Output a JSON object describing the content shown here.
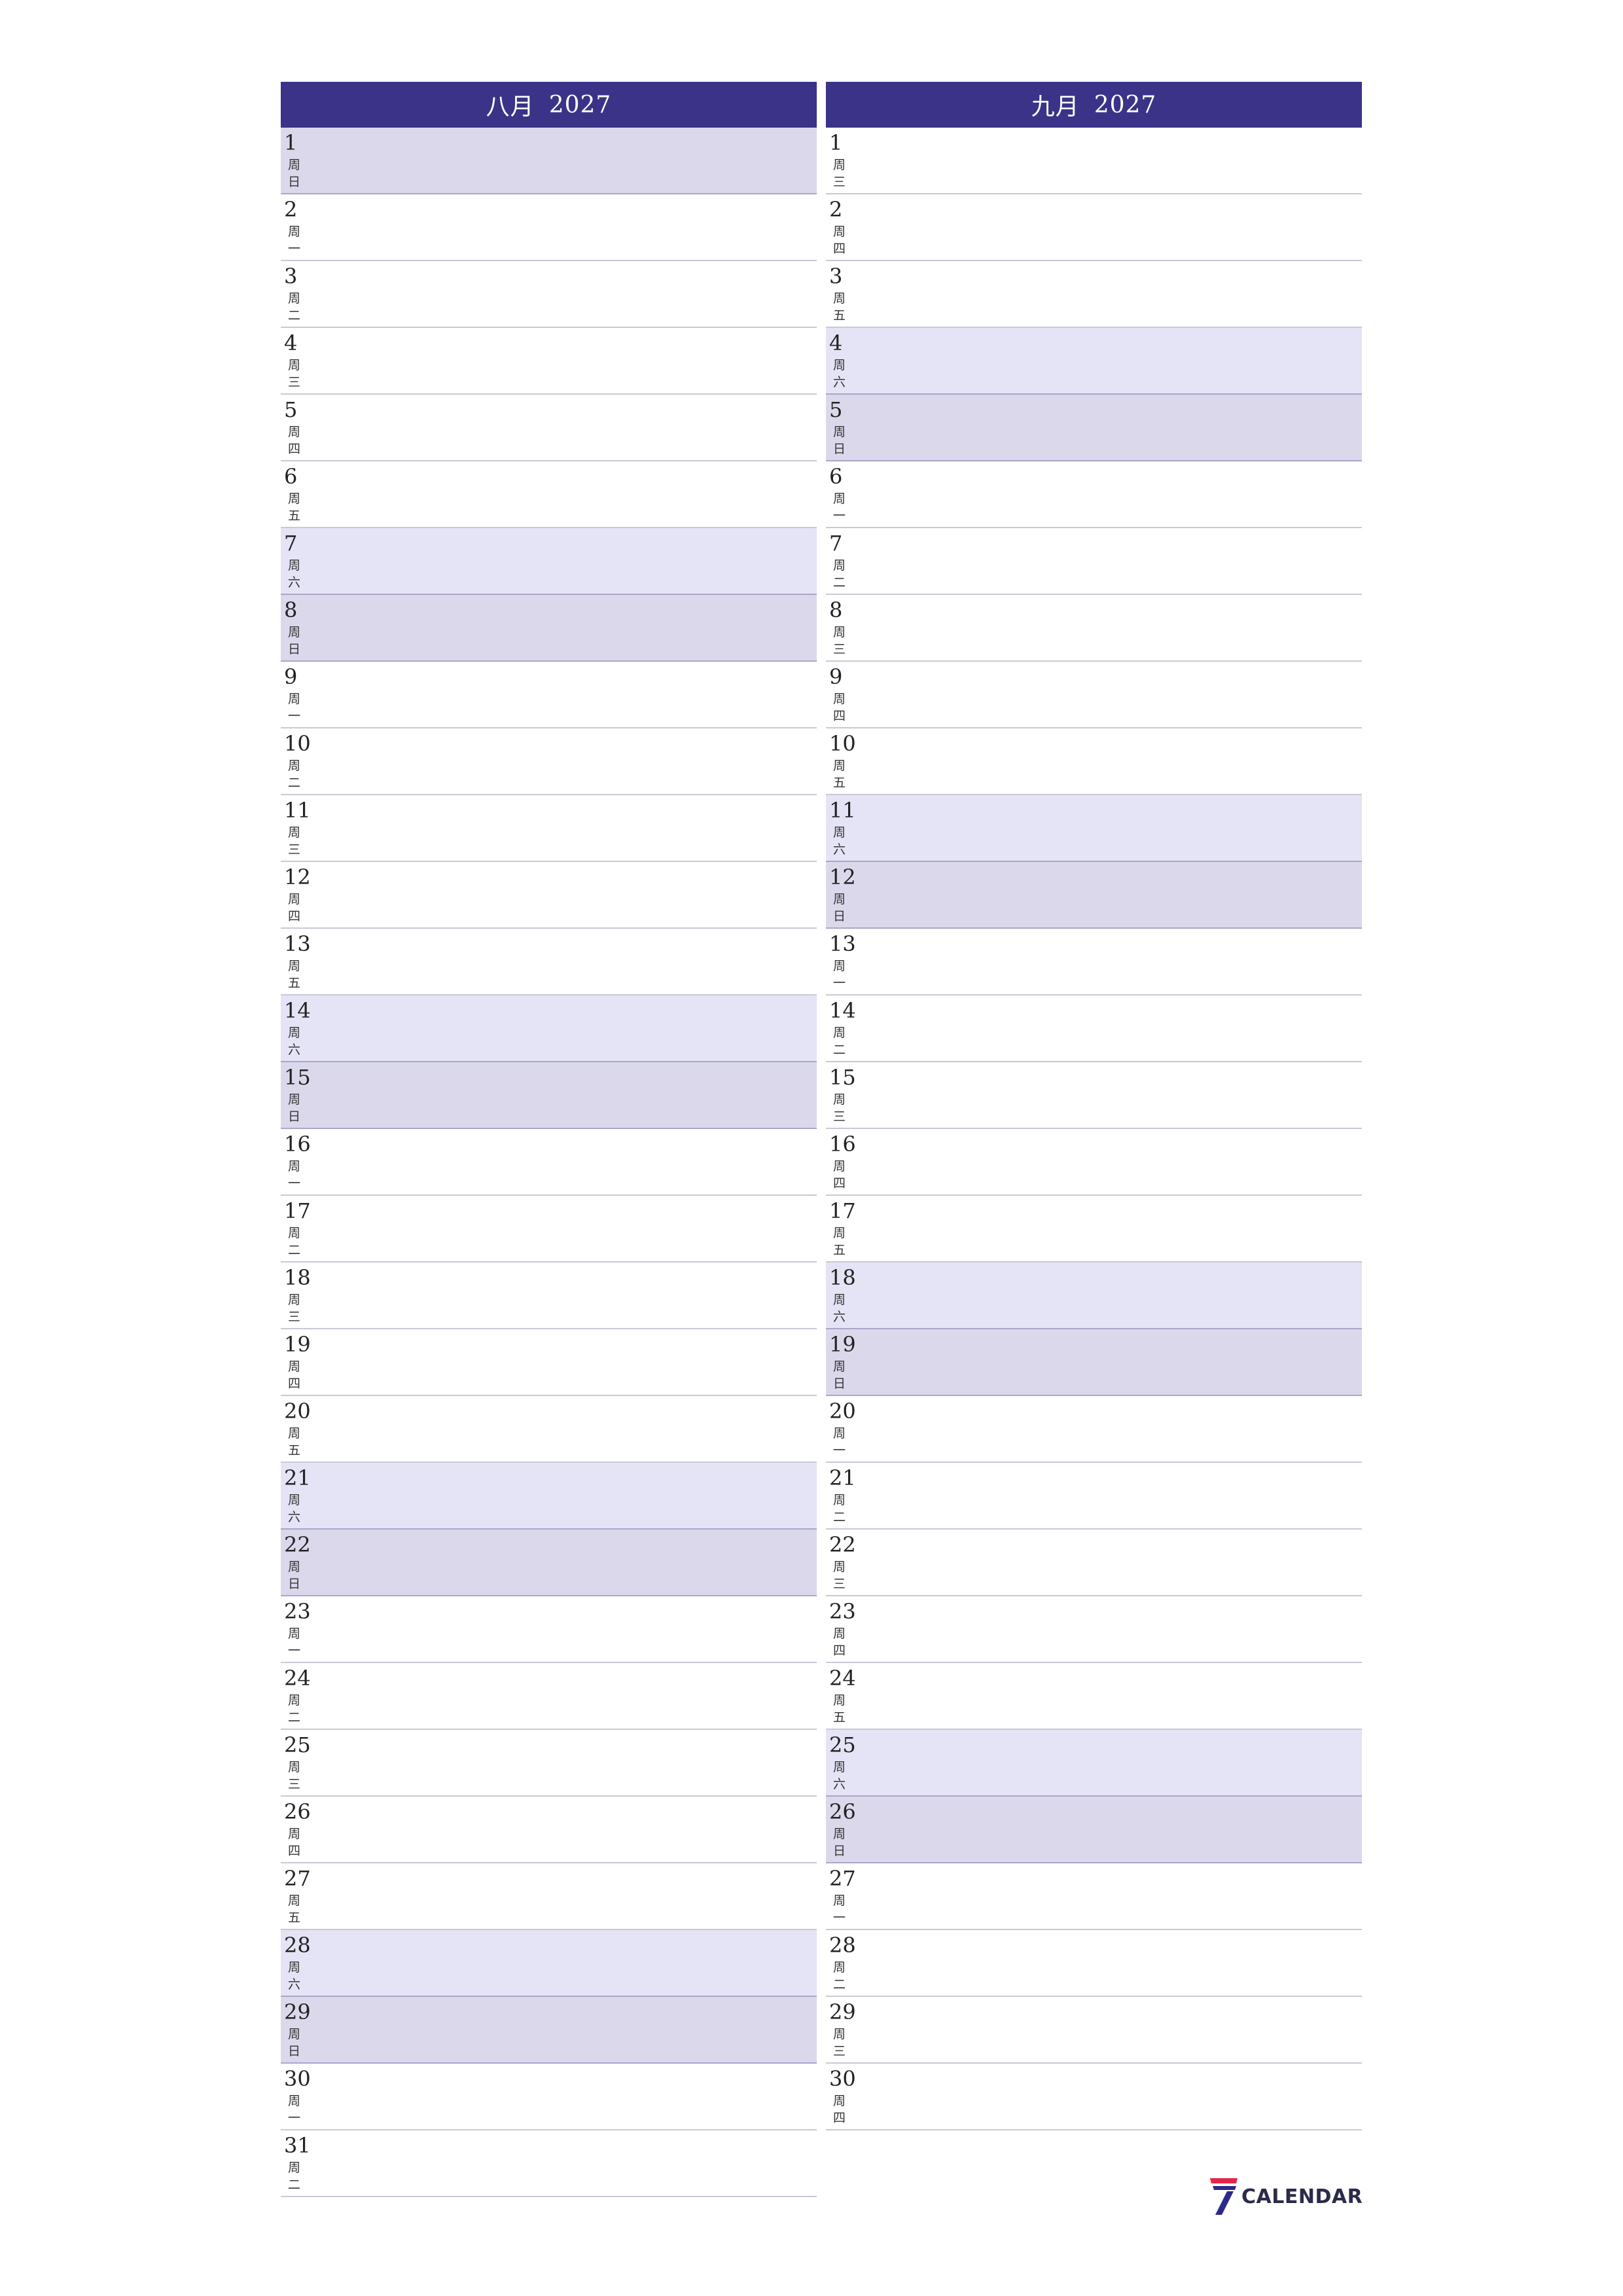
{
  "months": [
    {
      "name": "八月",
      "year": "2027",
      "days": [
        {
          "num": "1",
          "wd": "周日",
          "type": "sun"
        },
        {
          "num": "2",
          "wd": "周一",
          "type": ""
        },
        {
          "num": "3",
          "wd": "周二",
          "type": ""
        },
        {
          "num": "4",
          "wd": "周三",
          "type": ""
        },
        {
          "num": "5",
          "wd": "周四",
          "type": ""
        },
        {
          "num": "6",
          "wd": "周五",
          "type": ""
        },
        {
          "num": "7",
          "wd": "周六",
          "type": "sat"
        },
        {
          "num": "8",
          "wd": "周日",
          "type": "sun"
        },
        {
          "num": "9",
          "wd": "周一",
          "type": ""
        },
        {
          "num": "10",
          "wd": "周二",
          "type": ""
        },
        {
          "num": "11",
          "wd": "周三",
          "type": ""
        },
        {
          "num": "12",
          "wd": "周四",
          "type": ""
        },
        {
          "num": "13",
          "wd": "周五",
          "type": ""
        },
        {
          "num": "14",
          "wd": "周六",
          "type": "sat"
        },
        {
          "num": "15",
          "wd": "周日",
          "type": "sun"
        },
        {
          "num": "16",
          "wd": "周一",
          "type": ""
        },
        {
          "num": "17",
          "wd": "周二",
          "type": ""
        },
        {
          "num": "18",
          "wd": "周三",
          "type": ""
        },
        {
          "num": "19",
          "wd": "周四",
          "type": ""
        },
        {
          "num": "20",
          "wd": "周五",
          "type": ""
        },
        {
          "num": "21",
          "wd": "周六",
          "type": "sat"
        },
        {
          "num": "22",
          "wd": "周日",
          "type": "sun"
        },
        {
          "num": "23",
          "wd": "周一",
          "type": ""
        },
        {
          "num": "24",
          "wd": "周二",
          "type": ""
        },
        {
          "num": "25",
          "wd": "周三",
          "type": ""
        },
        {
          "num": "26",
          "wd": "周四",
          "type": ""
        },
        {
          "num": "27",
          "wd": "周五",
          "type": ""
        },
        {
          "num": "28",
          "wd": "周六",
          "type": "sat"
        },
        {
          "num": "29",
          "wd": "周日",
          "type": "sun"
        },
        {
          "num": "30",
          "wd": "周一",
          "type": ""
        },
        {
          "num": "31",
          "wd": "周二",
          "type": ""
        }
      ]
    },
    {
      "name": "九月",
      "year": "2027",
      "days": [
        {
          "num": "1",
          "wd": "周三",
          "type": ""
        },
        {
          "num": "2",
          "wd": "周四",
          "type": ""
        },
        {
          "num": "3",
          "wd": "周五",
          "type": ""
        },
        {
          "num": "4",
          "wd": "周六",
          "type": "sat"
        },
        {
          "num": "5",
          "wd": "周日",
          "type": "sun"
        },
        {
          "num": "6",
          "wd": "周一",
          "type": ""
        },
        {
          "num": "7",
          "wd": "周二",
          "type": ""
        },
        {
          "num": "8",
          "wd": "周三",
          "type": ""
        },
        {
          "num": "9",
          "wd": "周四",
          "type": ""
        },
        {
          "num": "10",
          "wd": "周五",
          "type": ""
        },
        {
          "num": "11",
          "wd": "周六",
          "type": "sat"
        },
        {
          "num": "12",
          "wd": "周日",
          "type": "sun"
        },
        {
          "num": "13",
          "wd": "周一",
          "type": ""
        },
        {
          "num": "14",
          "wd": "周二",
          "type": ""
        },
        {
          "num": "15",
          "wd": "周三",
          "type": ""
        },
        {
          "num": "16",
          "wd": "周四",
          "type": ""
        },
        {
          "num": "17",
          "wd": "周五",
          "type": ""
        },
        {
          "num": "18",
          "wd": "周六",
          "type": "sat"
        },
        {
          "num": "19",
          "wd": "周日",
          "type": "sun"
        },
        {
          "num": "20",
          "wd": "周一",
          "type": ""
        },
        {
          "num": "21",
          "wd": "周二",
          "type": ""
        },
        {
          "num": "22",
          "wd": "周三",
          "type": ""
        },
        {
          "num": "23",
          "wd": "周四",
          "type": ""
        },
        {
          "num": "24",
          "wd": "周五",
          "type": ""
        },
        {
          "num": "25",
          "wd": "周六",
          "type": "sat"
        },
        {
          "num": "26",
          "wd": "周日",
          "type": "sun"
        },
        {
          "num": "27",
          "wd": "周一",
          "type": ""
        },
        {
          "num": "28",
          "wd": "周二",
          "type": ""
        },
        {
          "num": "29",
          "wd": "周三",
          "type": ""
        },
        {
          "num": "30",
          "wd": "周四",
          "type": ""
        }
      ]
    }
  ],
  "colors": {
    "header": "#3a3388",
    "saturday": "#e4e4f6",
    "sunday": "#dcd8ec",
    "logo_mark_red": "#e3264a",
    "logo_mark_blue": "#2b2a8a"
  },
  "logo": {
    "text": "CALENDAR",
    "icon": "seven-logo-icon"
  }
}
